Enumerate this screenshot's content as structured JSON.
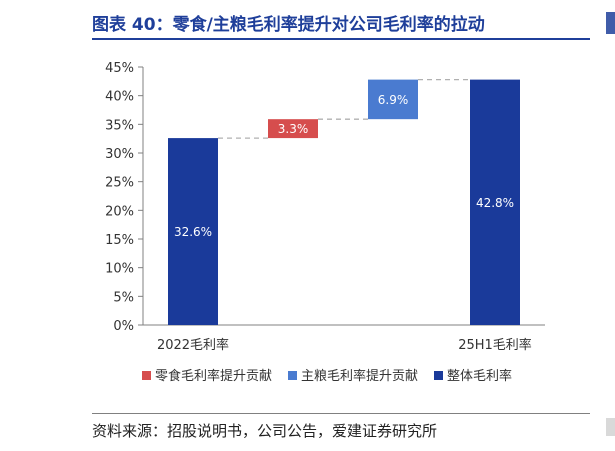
{
  "title": "图表 40：零食/主粮毛利率提升对公司毛利率的拉动",
  "source": "资料来源：招股说明书，公司公告，爱建证券研究所",
  "chart_data": {
    "type": "bar",
    "subtype": "waterfall",
    "categories": [
      "2022毛利率",
      "",
      "",
      "25H1毛利率"
    ],
    "bars": [
      {
        "category_index": 0,
        "series": "整体毛利率",
        "bottom": 0,
        "top": 32.6,
        "label": "32.6%"
      },
      {
        "category_index": 1,
        "series": "零食毛利率提升贡献",
        "bottom": 32.6,
        "top": 35.9,
        "label": "3.3%"
      },
      {
        "category_index": 2,
        "series": "主粮毛利率提升贡献",
        "bottom": 35.9,
        "top": 42.8,
        "label": "6.9%"
      },
      {
        "category_index": 3,
        "series": "整体毛利率",
        "bottom": 0,
        "top": 42.8,
        "label": "42.8%"
      }
    ],
    "y_ticks": [
      "0%",
      "5%",
      "10%",
      "15%",
      "20%",
      "25%",
      "30%",
      "35%",
      "40%",
      "45%"
    ],
    "ylim": [
      0,
      45
    ],
    "legend": [
      {
        "name": "零食毛利率提升贡献",
        "color": "#d64d4d"
      },
      {
        "name": "主粮毛利率提升贡献",
        "color": "#4a7bd0"
      },
      {
        "name": "整体毛利率",
        "color": "#1a3a9a"
      }
    ],
    "legend_position": "bottom",
    "grid": false,
    "connector_lines": true
  }
}
